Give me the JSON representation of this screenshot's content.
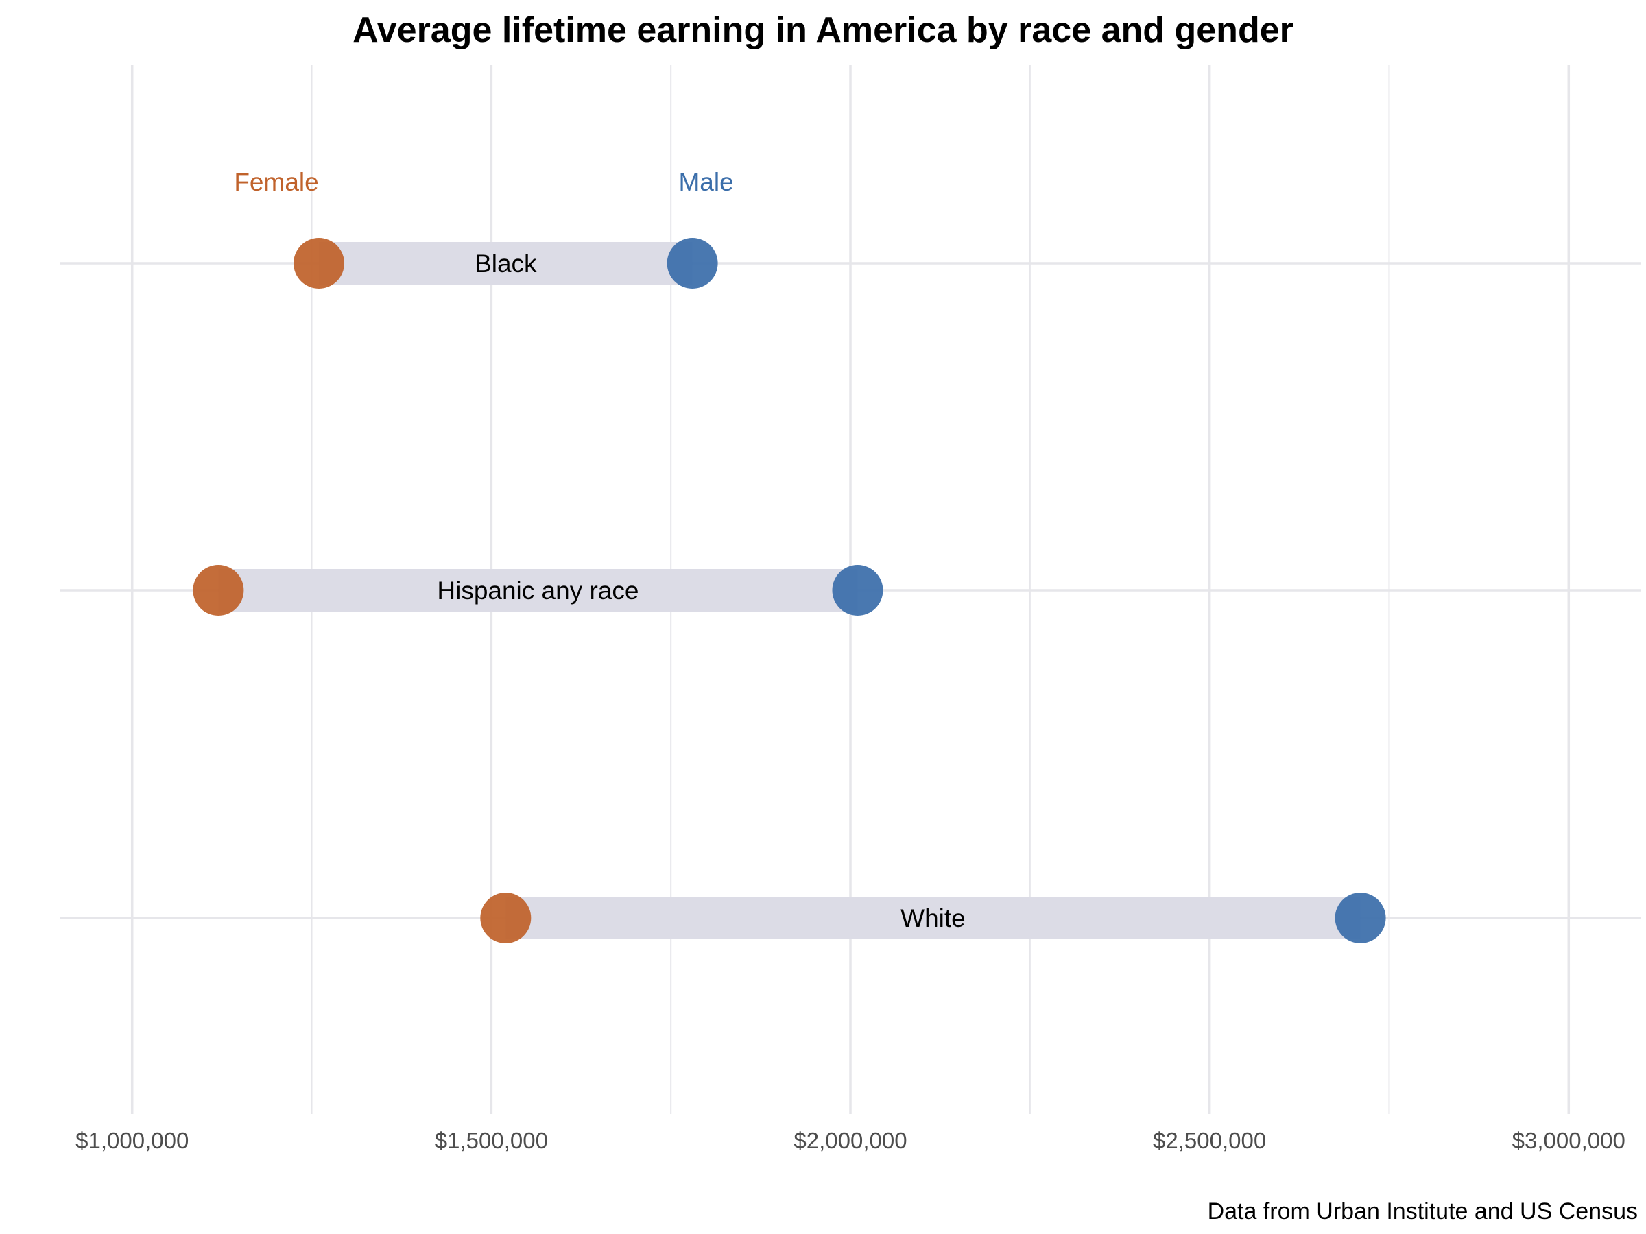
{
  "chart_data": {
    "type": "dumbbell",
    "title": "Average lifetime earning in America by race and gender",
    "caption": "Data from Urban Institute and US Census",
    "x_ticks": [
      1000000,
      1500000,
      2000000,
      2500000,
      3000000
    ],
    "x_tick_labels": [
      "$1,000,000",
      "$1,500,000",
      "$2,000,000",
      "$2,500,000",
      "$3,000,000"
    ],
    "xlim": [
      900000,
      3100000
    ],
    "legend_labels": {
      "female": "Female",
      "male": "Male"
    },
    "colors": {
      "female": "#c0622b",
      "male": "#3b6eaa",
      "segment": "#dcdce6",
      "grid": "#e6e6ea"
    },
    "categories": [
      "Black",
      "Hispanic any race",
      "White"
    ],
    "series": [
      {
        "name": "Female",
        "values": [
          1260000,
          1120000,
          1520000
        ]
      },
      {
        "name": "Male",
        "values": [
          1780000,
          2010000,
          2710000
        ]
      }
    ]
  }
}
